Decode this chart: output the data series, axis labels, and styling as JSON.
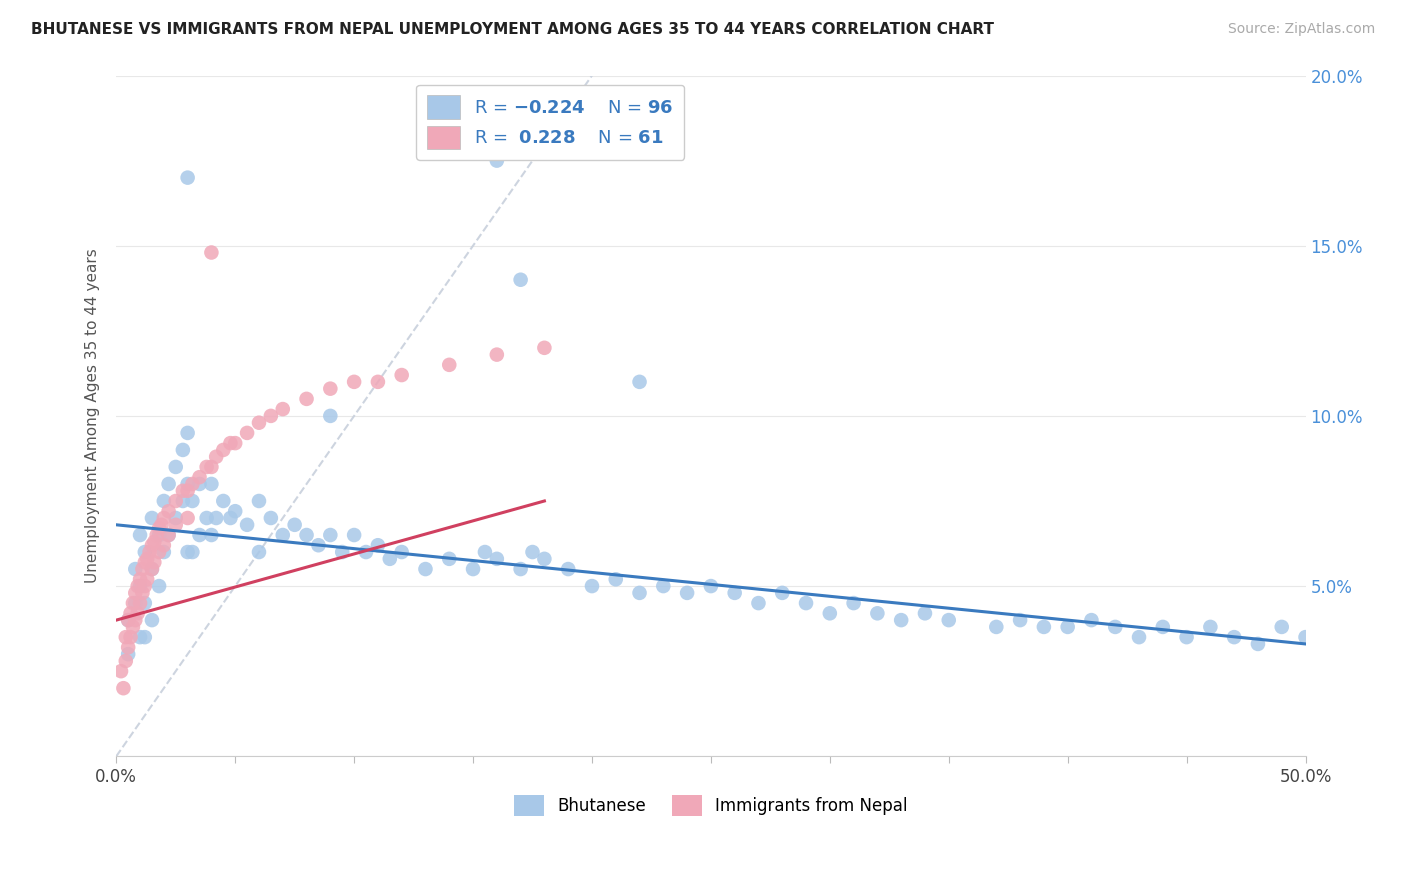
{
  "title": "BHUTANESE VS IMMIGRANTS FROM NEPAL UNEMPLOYMENT AMONG AGES 35 TO 44 YEARS CORRELATION CHART",
  "source": "Source: ZipAtlas.com",
  "ylabel": "Unemployment Among Ages 35 to 44 years",
  "xlim": [
    0,
    0.5
  ],
  "ylim": [
    0,
    0.2
  ],
  "blue_R": -0.224,
  "blue_N": 96,
  "pink_R": 0.228,
  "pink_N": 61,
  "blue_color": "#a8c8e8",
  "pink_color": "#f0a8b8",
  "blue_line_color": "#3a7abf",
  "pink_line_color": "#d04060",
  "ref_line_color": "#c8d0dc",
  "background_color": "#ffffff",
  "grid_color": "#e8e8e8",
  "blue_scatter_x": [
    0.005,
    0.005,
    0.008,
    0.008,
    0.01,
    0.01,
    0.01,
    0.012,
    0.012,
    0.012,
    0.015,
    0.015,
    0.015,
    0.018,
    0.018,
    0.02,
    0.02,
    0.022,
    0.022,
    0.025,
    0.025,
    0.028,
    0.028,
    0.03,
    0.03,
    0.03,
    0.032,
    0.032,
    0.035,
    0.035,
    0.038,
    0.04,
    0.04,
    0.042,
    0.045,
    0.048,
    0.05,
    0.055,
    0.06,
    0.06,
    0.065,
    0.07,
    0.075,
    0.08,
    0.085,
    0.09,
    0.095,
    0.1,
    0.105,
    0.11,
    0.115,
    0.12,
    0.13,
    0.14,
    0.15,
    0.155,
    0.16,
    0.17,
    0.175,
    0.18,
    0.19,
    0.2,
    0.21,
    0.22,
    0.23,
    0.24,
    0.25,
    0.26,
    0.27,
    0.28,
    0.29,
    0.3,
    0.31,
    0.32,
    0.33,
    0.34,
    0.35,
    0.37,
    0.38,
    0.39,
    0.4,
    0.41,
    0.42,
    0.43,
    0.44,
    0.45,
    0.46,
    0.47,
    0.48,
    0.49,
    0.5,
    0.16,
    0.03,
    0.17,
    0.09,
    0.22
  ],
  "blue_scatter_y": [
    0.04,
    0.03,
    0.055,
    0.045,
    0.065,
    0.05,
    0.035,
    0.06,
    0.045,
    0.035,
    0.07,
    0.055,
    0.04,
    0.065,
    0.05,
    0.075,
    0.06,
    0.08,
    0.065,
    0.085,
    0.07,
    0.09,
    0.075,
    0.095,
    0.08,
    0.06,
    0.075,
    0.06,
    0.08,
    0.065,
    0.07,
    0.08,
    0.065,
    0.07,
    0.075,
    0.07,
    0.072,
    0.068,
    0.075,
    0.06,
    0.07,
    0.065,
    0.068,
    0.065,
    0.062,
    0.065,
    0.06,
    0.065,
    0.06,
    0.062,
    0.058,
    0.06,
    0.055,
    0.058,
    0.055,
    0.06,
    0.058,
    0.055,
    0.06,
    0.058,
    0.055,
    0.05,
    0.052,
    0.048,
    0.05,
    0.048,
    0.05,
    0.048,
    0.045,
    0.048,
    0.045,
    0.042,
    0.045,
    0.042,
    0.04,
    0.042,
    0.04,
    0.038,
    0.04,
    0.038,
    0.038,
    0.04,
    0.038,
    0.035,
    0.038,
    0.035,
    0.038,
    0.035,
    0.033,
    0.038,
    0.035,
    0.175,
    0.17,
    0.14,
    0.1,
    0.11
  ],
  "pink_scatter_x": [
    0.002,
    0.003,
    0.004,
    0.004,
    0.005,
    0.005,
    0.006,
    0.006,
    0.007,
    0.007,
    0.008,
    0.008,
    0.009,
    0.009,
    0.01,
    0.01,
    0.011,
    0.011,
    0.012,
    0.012,
    0.013,
    0.013,
    0.014,
    0.015,
    0.015,
    0.016,
    0.016,
    0.017,
    0.018,
    0.018,
    0.019,
    0.02,
    0.02,
    0.022,
    0.022,
    0.025,
    0.025,
    0.028,
    0.03,
    0.03,
    0.032,
    0.035,
    0.038,
    0.04,
    0.042,
    0.045,
    0.048,
    0.05,
    0.055,
    0.06,
    0.065,
    0.07,
    0.08,
    0.09,
    0.1,
    0.11,
    0.12,
    0.14,
    0.16,
    0.18,
    0.04
  ],
  "pink_scatter_y": [
    0.025,
    0.02,
    0.035,
    0.028,
    0.04,
    0.032,
    0.042,
    0.035,
    0.045,
    0.038,
    0.048,
    0.04,
    0.05,
    0.042,
    0.052,
    0.045,
    0.055,
    0.048,
    0.057,
    0.05,
    0.058,
    0.052,
    0.06,
    0.062,
    0.055,
    0.063,
    0.057,
    0.065,
    0.067,
    0.06,
    0.068,
    0.07,
    0.062,
    0.072,
    0.065,
    0.075,
    0.068,
    0.078,
    0.078,
    0.07,
    0.08,
    0.082,
    0.085,
    0.085,
    0.088,
    0.09,
    0.092,
    0.092,
    0.095,
    0.098,
    0.1,
    0.102,
    0.105,
    0.108,
    0.11,
    0.11,
    0.112,
    0.115,
    0.118,
    0.12,
    0.148
  ],
  "blue_line_x0": 0.0,
  "blue_line_x1": 0.5,
  "blue_line_y0": 0.068,
  "blue_line_y1": 0.033,
  "pink_line_x0": 0.0,
  "pink_line_x1": 0.18,
  "pink_line_y0": 0.04,
  "pink_line_y1": 0.075,
  "ref_line_x0": 0.0,
  "ref_line_x1": 0.2,
  "ref_line_y0": 0.0,
  "ref_line_y1": 0.2
}
